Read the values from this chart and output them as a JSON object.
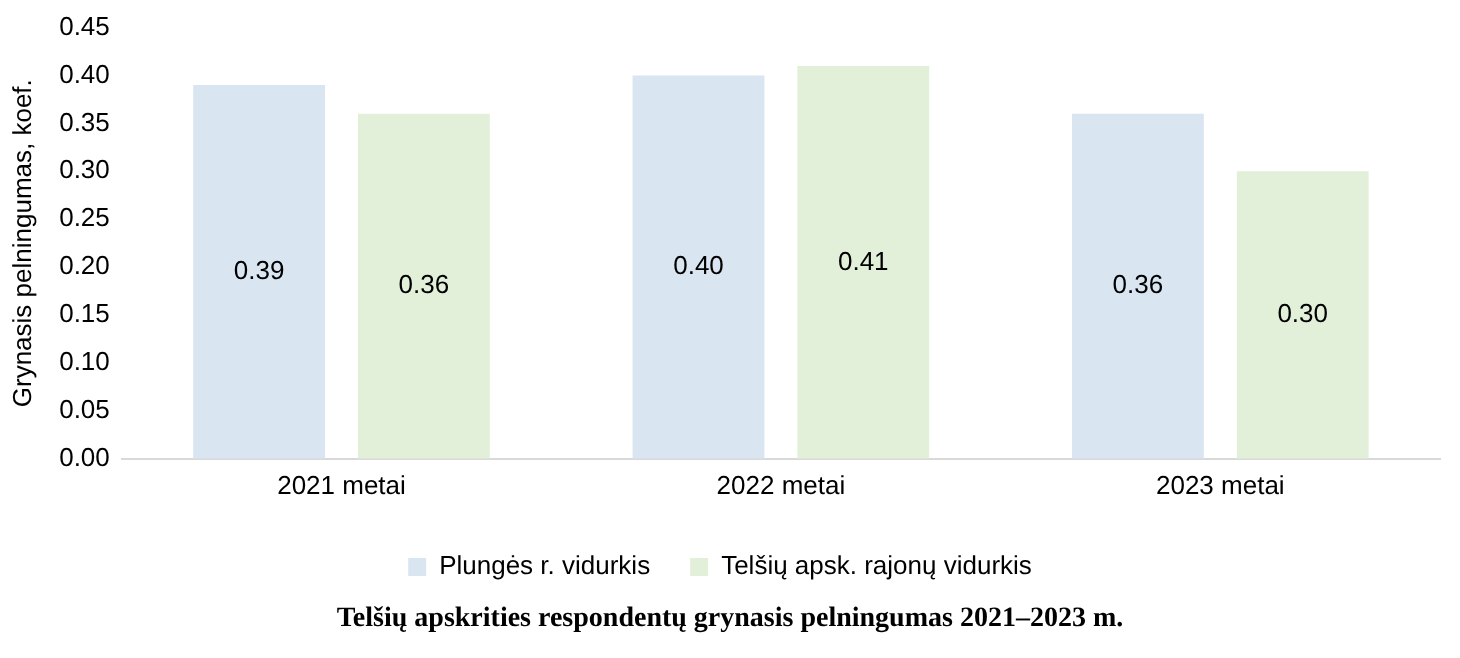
{
  "chart_data": {
    "type": "bar",
    "title": "Telšių apskrities respondentų grynasis pelningumas 2021–2023 m.",
    "ylabel": "Grynasis pelningumas, koef.",
    "categories": [
      "2021 metai",
      "2022 metai",
      "2023 metai"
    ],
    "series": [
      {
        "name": "Plungės r. vidurkis",
        "color": "#dae5f2",
        "values": [
          0.39,
          0.4,
          0.36
        ],
        "value_labels": [
          "0.39",
          "0.40",
          "0.36"
        ]
      },
      {
        "name": "Telšių apsk. rajonų vidurkis",
        "color": "#e2efd9",
        "values": [
          0.36,
          0.41,
          0.3
        ],
        "value_labels": [
          "0.36",
          "0.41",
          "0.30"
        ]
      }
    ],
    "ylim": [
      0,
      0.45
    ],
    "yticks": [
      {
        "value": 0,
        "label": "0.00"
      },
      {
        "value": 0.05,
        "label": "0.05"
      },
      {
        "value": 0.1,
        "label": "0.10"
      },
      {
        "value": 0.15,
        "label": "0.15"
      },
      {
        "value": 0.2,
        "label": "0.20"
      },
      {
        "value": 0.25,
        "label": "0.25"
      },
      {
        "value": 0.3,
        "label": "0.30"
      },
      {
        "value": 0.35,
        "label": "0.35"
      },
      {
        "value": 0.4,
        "label": "0.40"
      },
      {
        "value": 0.45,
        "label": "0.45"
      }
    ],
    "grid": false,
    "legend": "bottom"
  }
}
